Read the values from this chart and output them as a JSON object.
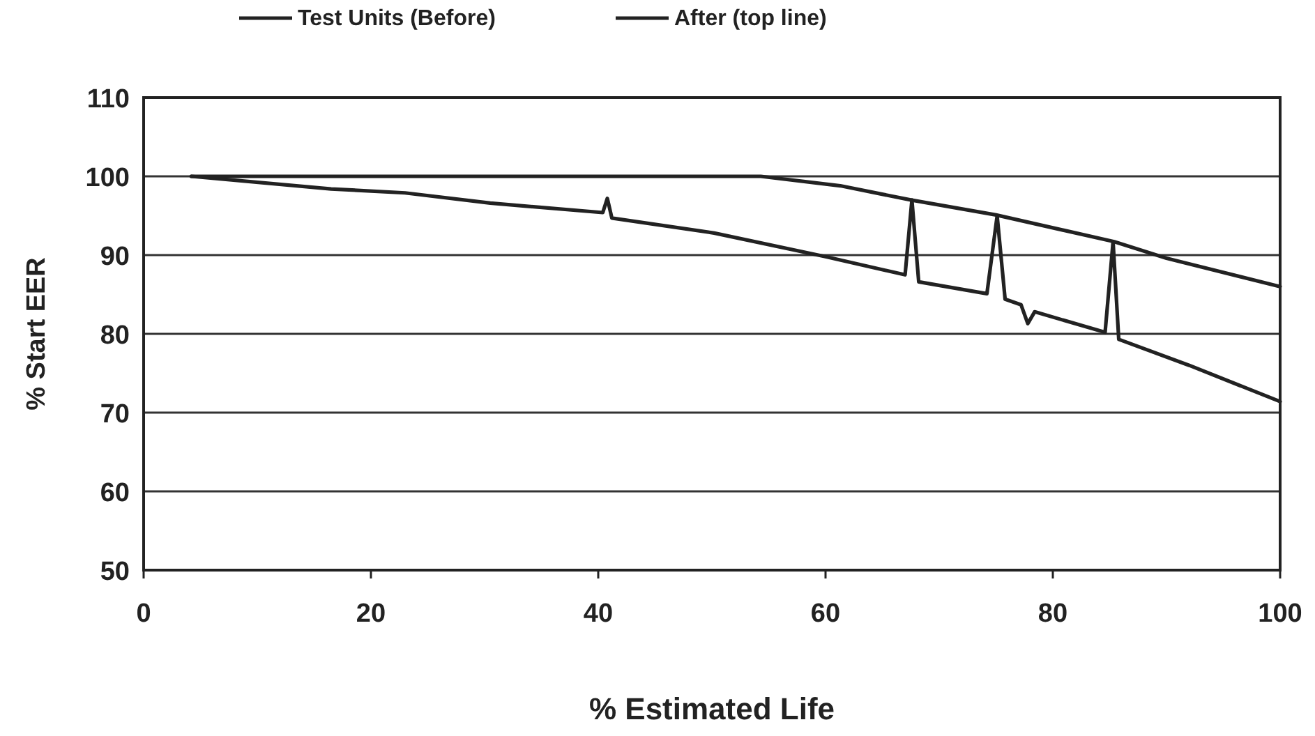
{
  "chart_data": {
    "type": "line",
    "xlabel": "% Estimated Life",
    "ylabel": "% Start EER",
    "xlim": [
      0,
      100
    ],
    "xticks": [
      0,
      20,
      40,
      60,
      80,
      100
    ],
    "ylim": [
      50,
      110
    ],
    "yticks": [
      50,
      60,
      70,
      80,
      90,
      100,
      110
    ],
    "grid": "y",
    "legend": "top",
    "marker": "none",
    "line_style": "solid",
    "series": [
      {
        "name": "Test Units (Before)",
        "color": "#222222",
        "x": [
          4.2,
          16.5,
          23,
          30.5,
          40.4,
          40.8,
          41.2,
          50.2,
          60,
          67,
          67.6,
          68.2,
          74.2,
          75.1,
          75.8,
          77.2,
          77.8,
          78.4,
          84.6,
          85.3,
          85.8,
          92,
          100
        ],
        "values": [
          100,
          98.4,
          97.9,
          96.6,
          95.4,
          97.2,
          94.7,
          92.8,
          89.8,
          87.5,
          97,
          86.6,
          85.1,
          95,
          84.4,
          83.7,
          81.3,
          82.8,
          80.2,
          91.7,
          79.3,
          76,
          71.4
        ]
      },
      {
        "name": "After (top line)",
        "color": "#222222",
        "x": [
          4.2,
          30,
          54.3,
          61.3,
          67.5,
          75,
          85.4,
          90,
          100
        ],
        "values": [
          100,
          100,
          100,
          98.8,
          97,
          95.1,
          91.7,
          89.6,
          86
        ]
      }
    ]
  }
}
